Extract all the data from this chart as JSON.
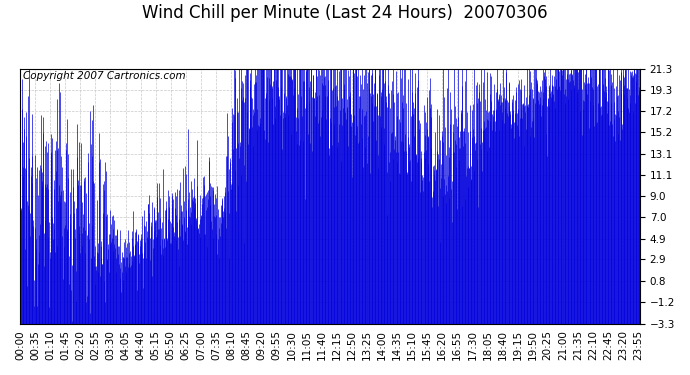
{
  "title": "Wind Chill per Minute (Last 24 Hours)  20070306",
  "copyright_text": "Copyright 2007 Cartronics.com",
  "line_color": "#0000dd",
  "bg_color": "#ffffff",
  "plot_bg_color": "#ffffff",
  "grid_color": "#bbbbbb",
  "yticks": [
    21.3,
    19.3,
    17.2,
    15.2,
    13.1,
    11.1,
    9.0,
    7.0,
    4.9,
    2.9,
    0.8,
    -1.2,
    -3.3
  ],
  "ylim": [
    -3.3,
    21.3
  ],
  "xtick_labels": [
    "00:00",
    "00:35",
    "01:10",
    "01:45",
    "02:20",
    "02:55",
    "03:30",
    "04:05",
    "04:40",
    "05:15",
    "05:50",
    "06:25",
    "07:00",
    "07:35",
    "08:10",
    "08:45",
    "09:20",
    "09:55",
    "10:30",
    "11:05",
    "11:40",
    "12:15",
    "12:50",
    "13:25",
    "14:00",
    "14:35",
    "15:10",
    "15:45",
    "16:20",
    "16:55",
    "17:30",
    "18:05",
    "18:40",
    "19:15",
    "19:50",
    "20:25",
    "21:00",
    "21:35",
    "22:10",
    "22:45",
    "23:20",
    "23:55"
  ],
  "title_fontsize": 12,
  "tick_fontsize": 7.5,
  "copyright_fontsize": 7.5
}
